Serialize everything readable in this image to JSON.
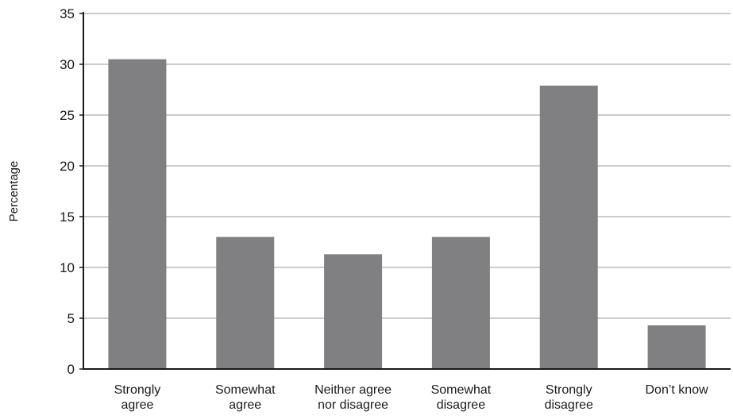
{
  "chart_data": {
    "type": "bar",
    "title": "",
    "xlabel": "",
    "ylabel": "Percentage",
    "ylim": [
      0,
      35
    ],
    "yticks": [
      0,
      5,
      10,
      15,
      20,
      25,
      30,
      35
    ],
    "grid": true,
    "legend": "none",
    "categories": [
      [
        "Strongly",
        "agree"
      ],
      [
        "Somewhat",
        "agree"
      ],
      [
        "Neither agree",
        "nor disagree"
      ],
      [
        "Somewhat",
        "disagree"
      ],
      [
        "Strongly",
        "disagree"
      ],
      [
        "Don’t know"
      ]
    ],
    "values": [
      30.5,
      13.0,
      11.3,
      13.0,
      27.9,
      4.3
    ],
    "colors": {
      "bar": "#808083",
      "grid": "#9a9a9a",
      "axis": "#1a1a1a"
    }
  }
}
